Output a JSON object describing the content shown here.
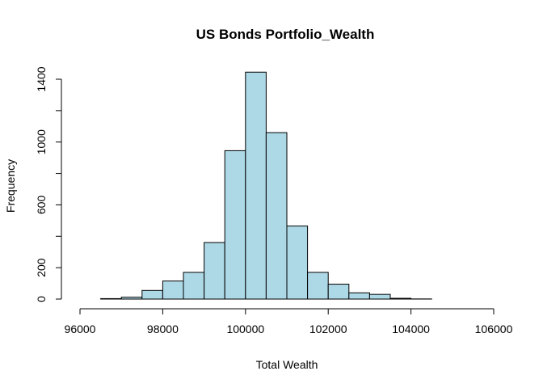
{
  "chart_data": {
    "type": "bar",
    "subtype": "histogram",
    "title": "US Bonds Portfolio_Wealth",
    "xlabel": "Total Wealth",
    "ylabel": "Frequency",
    "bar_color": "#add8e6",
    "xlim": [
      96000,
      106000
    ],
    "ylim": [
      0,
      1400
    ],
    "x_ticks": [
      96000,
      98000,
      100000,
      102000,
      104000,
      106000
    ],
    "x_tick_labels": [
      "96000",
      "98000",
      "100000",
      "102000",
      "104000",
      "106000"
    ],
    "y_ticks": [
      0,
      200,
      600,
      1000,
      1400
    ],
    "y_tick_labels": [
      "0",
      "200",
      "600",
      "1000",
      "1400"
    ],
    "y_minor_ticks": [
      400,
      800,
      1200
    ],
    "bins": [
      {
        "from": 96000,
        "to": 96500,
        "count": 0
      },
      {
        "from": 96500,
        "to": 97000,
        "count": 3
      },
      {
        "from": 97000,
        "to": 97500,
        "count": 12
      },
      {
        "from": 97500,
        "to": 98000,
        "count": 55
      },
      {
        "from": 98000,
        "to": 98500,
        "count": 115
      },
      {
        "from": 98500,
        "to": 99000,
        "count": 170
      },
      {
        "from": 99000,
        "to": 99500,
        "count": 360
      },
      {
        "from": 99500,
        "to": 100000,
        "count": 945
      },
      {
        "from": 100000,
        "to": 100500,
        "count": 1445
      },
      {
        "from": 100500,
        "to": 101000,
        "count": 1060
      },
      {
        "from": 101000,
        "to": 101500,
        "count": 465
      },
      {
        "from": 101500,
        "to": 102000,
        "count": 170
      },
      {
        "from": 102000,
        "to": 102500,
        "count": 95
      },
      {
        "from": 102500,
        "to": 103000,
        "count": 40
      },
      {
        "from": 103000,
        "to": 103500,
        "count": 30
      },
      {
        "from": 103500,
        "to": 104000,
        "count": 5
      },
      {
        "from": 104000,
        "to": 104500,
        "count": 1
      },
      {
        "from": 104500,
        "to": 105000,
        "count": 0
      },
      {
        "from": 105000,
        "to": 105500,
        "count": 0
      },
      {
        "from": 105500,
        "to": 106000,
        "count": 0
      }
    ]
  }
}
